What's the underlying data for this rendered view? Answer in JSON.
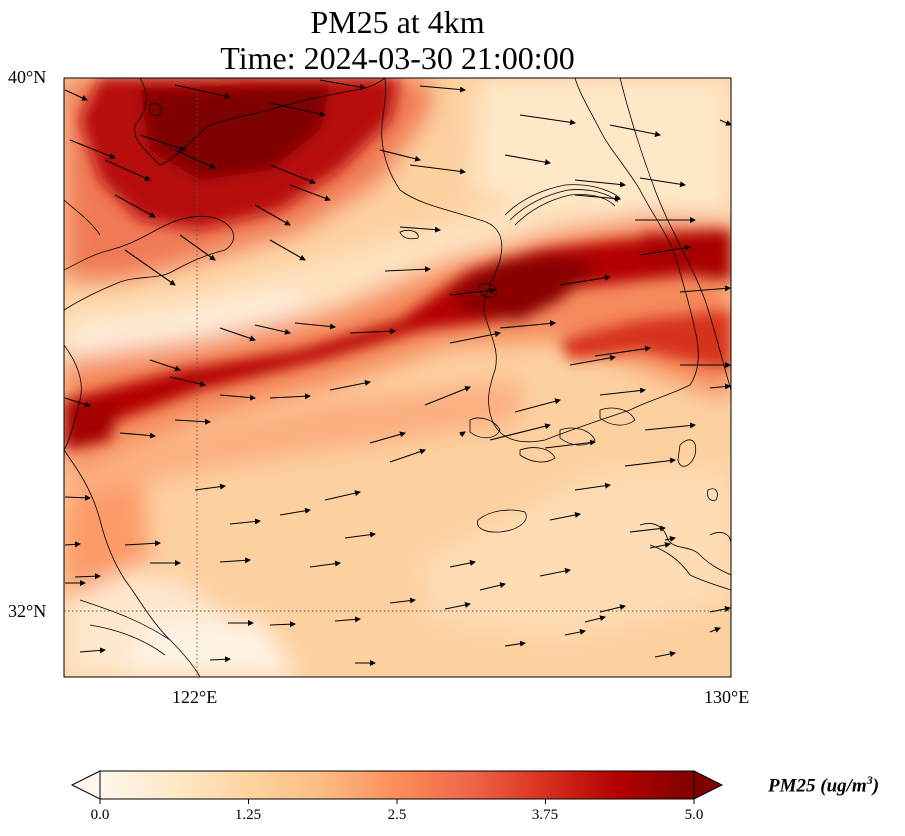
{
  "title": {
    "line1": "PM25 at 4km",
    "line2": "Time: 2024-03-30 21:00:00"
  },
  "axes": {
    "lat_ticks": [
      {
        "value": 40,
        "label": "40°N"
      },
      {
        "value": 32,
        "label": "32°N"
      }
    ],
    "lon_ticks": [
      {
        "value": 122,
        "label": "122°E"
      },
      {
        "value": 130,
        "label": "130°E"
      }
    ],
    "lon_range": [
      120,
      130
    ],
    "lat_range": [
      31,
      40
    ],
    "gridlines": "dotted at tick positions"
  },
  "colorbar": {
    "cmap": "OrRd",
    "min": 0.0,
    "max": 5.0,
    "extend": "both",
    "ticks": [
      "0.0",
      "1.25",
      "2.5",
      "3.75",
      "5.0"
    ],
    "label_main": "PM25 (ug/m",
    "label_sup": "3",
    "label_tail": ")",
    "stops": [
      "#fff7ec",
      "#fee8c8",
      "#fdd49e",
      "#fdbb84",
      "#fc8d59",
      "#ef6548",
      "#d7301f",
      "#b30000",
      "#7f0000"
    ]
  },
  "wind_vectors": "eastward flow, mostly west-southwesterly, stronger in the north"
}
